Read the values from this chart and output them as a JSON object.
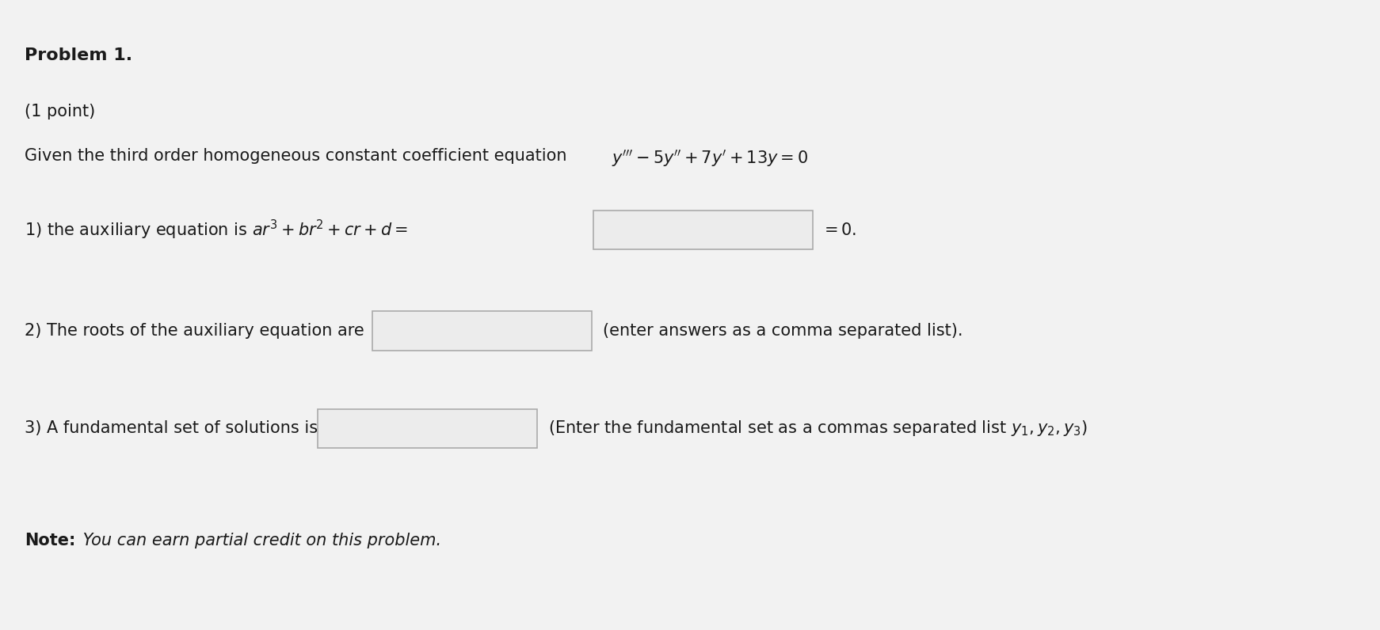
{
  "background_color": "#f2f2f2",
  "text_color": "#1a1a1a",
  "title": "Problem 1.",
  "subtitle": "(1 point)",
  "intro_plain": "Given the third order homogeneous constant coefficient equation ",
  "line2_prefix": "2) The roots of the auxiliary equation are",
  "line2_suffix": "(enter answers as a comma separated list).",
  "line3_prefix": "3) A fundamental set of solutions is",
  "note_bold": "Note:",
  "note_italic": " You can earn partial credit on this problem.",
  "box_color": "#ececec",
  "box_edge_color": "#aaaaaa",
  "figsize": [
    17.42,
    7.96
  ],
  "dpi": 100
}
